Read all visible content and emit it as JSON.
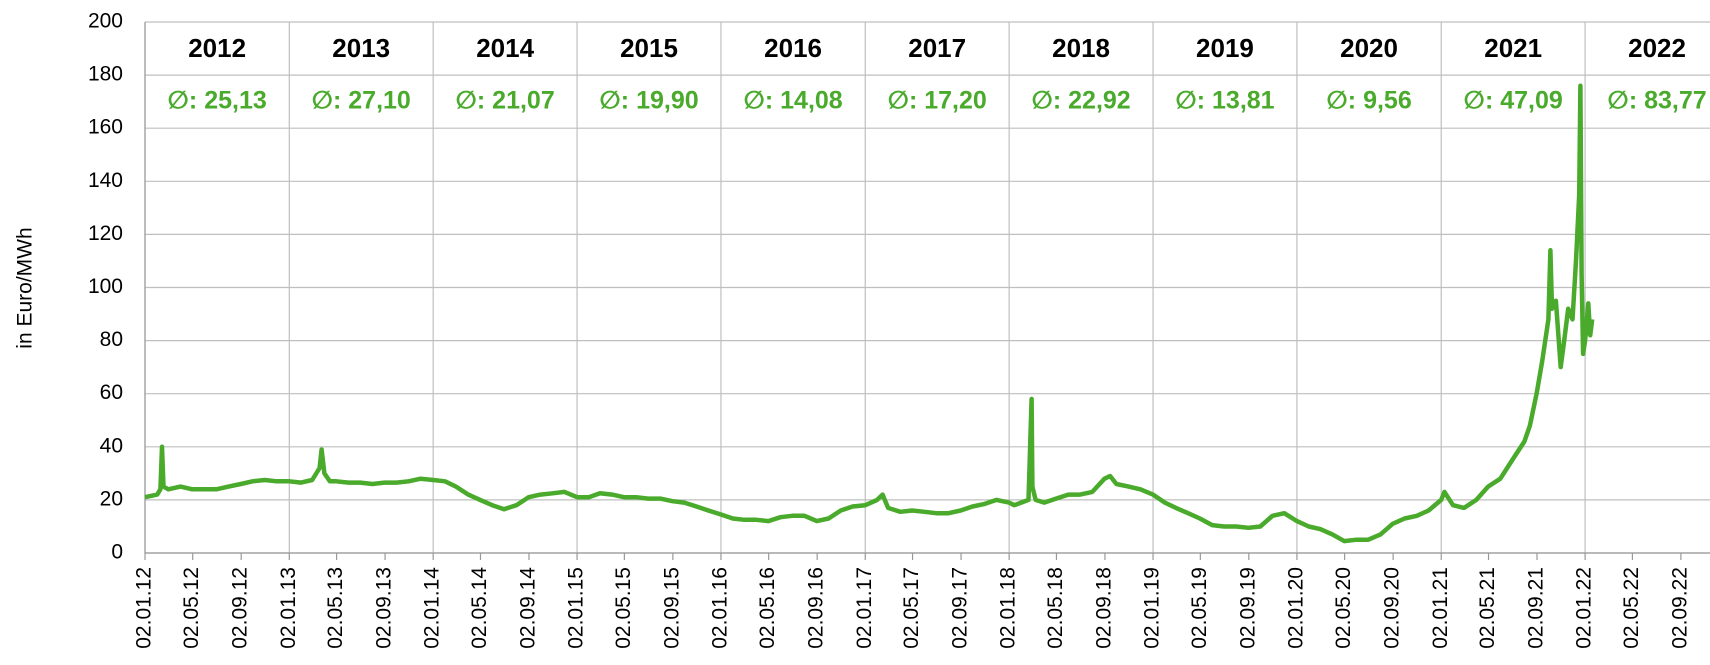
{
  "chart_data": {
    "type": "line",
    "ylabel": "in Euro/MWh",
    "ylim": [
      0,
      200
    ],
    "yticks": [
      0,
      20,
      40,
      60,
      80,
      100,
      120,
      140,
      160,
      180,
      200
    ],
    "xlim": [
      "02.01.12",
      "02.01.23"
    ],
    "xticks": [
      "02.01.12",
      "02.05.12",
      "02.09.12",
      "02.01.13",
      "02.05.13",
      "02.09.13",
      "02.01.14",
      "02.05.14",
      "02.09.14",
      "02.01.15",
      "02.05.15",
      "02.09.15",
      "02.01.16",
      "02.05.16",
      "02.09.16",
      "02.01.17",
      "02.05.17",
      "02.09.17",
      "02.01.18",
      "02.05.18",
      "02.09.18",
      "02.01.19",
      "02.05.19",
      "02.09.19",
      "02.01.20",
      "02.05.20",
      "02.09.20",
      "02.01.21",
      "02.05.21",
      "02.09.21",
      "02.01.22",
      "02.05.22",
      "02.09.22"
    ],
    "years": [
      "2012",
      "2013",
      "2014",
      "2015",
      "2016",
      "2017",
      "2018",
      "2019",
      "2020",
      "2021",
      "2022"
    ],
    "year_averages": [
      "∅: 25,13",
      "∅: 27,10",
      "∅: 21,07",
      "∅: 19,90",
      "∅: 14,08",
      "∅: 17,20",
      "∅: 22,92",
      "∅: 13,81",
      "∅: 9,56",
      "∅: 47,09",
      "∅: 83,77"
    ],
    "grid": true,
    "series": [
      {
        "color": "#4aaa2b",
        "x": [
          "02.01.12",
          "02.02.12",
          "10.02.12",
          "14.02.12",
          "18.02.12",
          "01.03.12",
          "01.04.12",
          "01.05.12",
          "01.06.12",
          "01.07.12",
          "01.08.12",
          "01.09.12",
          "01.10.12",
          "01.11.12",
          "01.12.12",
          "02.01.13",
          "01.02.13",
          "01.03.13",
          "20.03.13",
          "25.03.13",
          "01.04.13",
          "15.04.13",
          "01.05.13",
          "01.06.13",
          "01.07.13",
          "01.08.13",
          "01.09.13",
          "01.10.13",
          "01.11.13",
          "01.12.13",
          "02.01.14",
          "01.02.14",
          "01.03.14",
          "01.04.14",
          "01.05.14",
          "01.06.14",
          "01.07.14",
          "01.08.14",
          "01.09.14",
          "01.10.14",
          "01.11.14",
          "01.12.14",
          "02.01.15",
          "01.02.15",
          "01.03.15",
          "01.04.15",
          "01.05.15",
          "01.06.15",
          "01.07.15",
          "01.08.15",
          "01.09.15",
          "01.10.15",
          "01.11.15",
          "01.12.15",
          "02.01.16",
          "01.02.16",
          "01.03.16",
          "01.04.16",
          "01.05.16",
          "01.06.16",
          "01.07.16",
          "01.08.16",
          "01.09.16",
          "01.10.16",
          "01.11.16",
          "01.12.16",
          "02.01.17",
          "01.02.17",
          "15.02.17",
          "01.03.17",
          "01.04.17",
          "01.05.17",
          "01.06.17",
          "01.07.17",
          "01.08.17",
          "01.09.17",
          "01.10.17",
          "01.11.17",
          "01.12.17",
          "02.01.18",
          "15.01.18",
          "20.02.18",
          "28.02.18",
          "02.03.18",
          "10.03.18",
          "01.04.18",
          "01.05.18",
          "01.06.18",
          "01.07.18",
          "01.08.18",
          "01.09.18",
          "15.09.18",
          "01.10.18",
          "01.11.18",
          "01.12.18",
          "02.01.19",
          "01.02.19",
          "01.03.19",
          "01.04.19",
          "01.05.19",
          "01.06.19",
          "01.07.19",
          "01.08.19",
          "01.09.19",
          "01.10.19",
          "01.11.19",
          "01.12.19",
          "02.01.20",
          "01.02.20",
          "01.03.20",
          "01.04.20",
          "01.05.20",
          "01.06.20",
          "01.07.20",
          "01.08.20",
          "01.09.20",
          "01.10.20",
          "01.11.20",
          "01.12.20",
          "02.01.21",
          "10.01.21",
          "01.02.21",
          "01.03.21",
          "01.04.21",
          "01.05.21",
          "01.06.21",
          "01.07.21",
          "01.08.21",
          "15.08.21",
          "01.09.21",
          "15.09.21",
          "01.10.21",
          "06.10.21",
          "10.10.21",
          "20.10.21",
          "01.11.21",
          "10.11.21",
          "20.11.21",
          "01.12.21",
          "10.12.21",
          "18.12.21",
          "21.12.21",
          "24.12.21",
          "28.12.21",
          "02.01.22",
          "10.01.22",
          "15.01.22",
          "20.01.22"
        ],
        "values": [
          21,
          22,
          24,
          40,
          25,
          24,
          25,
          24,
          24,
          24,
          25,
          26,
          27,
          27.5,
          27,
          27,
          26.5,
          27.5,
          32,
          39,
          30,
          27,
          27,
          26.5,
          26.5,
          26,
          26.5,
          26.5,
          27,
          28,
          27.5,
          27,
          25,
          22,
          20,
          18,
          16.5,
          18,
          21,
          22,
          22.5,
          23,
          21,
          21,
          22.5,
          22,
          21,
          21,
          20.5,
          20.5,
          19.5,
          19,
          17.5,
          16,
          14.5,
          13,
          12.5,
          12.5,
          12,
          13.5,
          14,
          14,
          12,
          13,
          16,
          17.5,
          18,
          20,
          22,
          17,
          15.5,
          16,
          15.5,
          15,
          15,
          16,
          17.5,
          18.5,
          20,
          19,
          18,
          20,
          58,
          25,
          20,
          19,
          20.5,
          22,
          22,
          23,
          28,
          29,
          26,
          25,
          24,
          22,
          19,
          17,
          15,
          13,
          10.5,
          10,
          10,
          9.5,
          10,
          14,
          15,
          12,
          10,
          9,
          7,
          4.5,
          5,
          5,
          7,
          11,
          13,
          14,
          16,
          20,
          23,
          18,
          17,
          20,
          25,
          28,
          35,
          42,
          48,
          60,
          72,
          88,
          114,
          92,
          95,
          70,
          80,
          92,
          88,
          110,
          135,
          176,
          105,
          75,
          80,
          94,
          82,
          88
        ]
      }
    ]
  }
}
